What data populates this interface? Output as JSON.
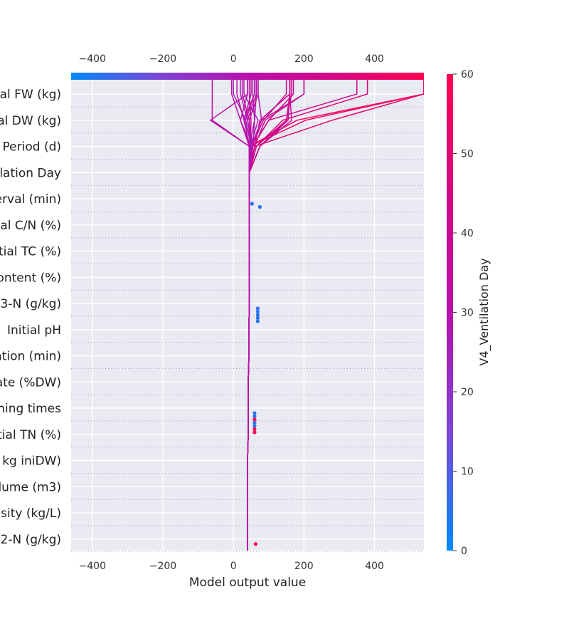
{
  "chart_data": {
    "type": "line",
    "subtype": "shap-decision-plot",
    "xlabel": "Model output value",
    "x_ticks": [
      -400,
      -200,
      0,
      200,
      400
    ],
    "xlim": [
      -460,
      540
    ],
    "base_value": 40,
    "features": [
      "al FW (kg)",
      "al DW (kg)",
      "Period (d)",
      "lation Day",
      "erval (min)",
      "al C/N (%)",
      "tial TC (%)",
      "ontent (%)",
      "3-N (g/kg)",
      "Initial pH",
      "ation (min)",
      "ate (%DW)",
      "ning times",
      "tial TN (%)",
      "kg iniDW)",
      "lume (m3)",
      "nsity (kg/L)",
      "2-N (g/kg)"
    ],
    "colorbar": {
      "title": "V4_Ventilation Day",
      "ticks": [
        0,
        10,
        20,
        30,
        40,
        50,
        60
      ],
      "min": 0,
      "max": 60,
      "colors": [
        "#008afb",
        "#7c45d6",
        "#b811ac",
        "#d40484",
        "#ff0051"
      ]
    },
    "background_color": "#eaeaf2",
    "grid": true,
    "series": [
      {
        "color_value": 58,
        "x": [
          40,
          40,
          40,
          40,
          42,
          42,
          42,
          44,
          44,
          45,
          45,
          45,
          45,
          45,
          45,
          46,
          180,
          540
        ]
      },
      {
        "color_value": 55,
        "x": [
          40,
          40,
          40,
          40,
          42,
          42,
          42,
          44,
          44,
          45,
          45,
          45,
          45,
          45,
          45,
          46,
          205,
          540
        ]
      },
      {
        "color_value": 52,
        "x": [
          40,
          40,
          40,
          40,
          42,
          42,
          42,
          44,
          44,
          45,
          45,
          45,
          45,
          45,
          45,
          60,
          280,
          540
        ]
      },
      {
        "color_value": 48,
        "x": [
          40,
          40,
          40,
          40,
          42,
          42,
          42,
          44,
          44,
          45,
          45,
          45,
          45,
          45,
          45,
          65,
          140,
          380
        ]
      },
      {
        "color_value": 40,
        "x": [
          40,
          40,
          40,
          40,
          42,
          42,
          42,
          44,
          44,
          45,
          45,
          45,
          45,
          45,
          45,
          55,
          100,
          350
        ]
      },
      {
        "color_value": 38,
        "x": [
          40,
          40,
          40,
          40,
          42,
          42,
          42,
          44,
          44,
          45,
          45,
          45,
          45,
          45,
          45,
          50,
          80,
          200
        ]
      },
      {
        "color_value": 40,
        "x": [
          40,
          40,
          40,
          40,
          42,
          42,
          42,
          44,
          44,
          45,
          45,
          45,
          45,
          45,
          45,
          60,
          75,
          160
        ]
      },
      {
        "color_value": 36,
        "x": [
          40,
          40,
          40,
          40,
          42,
          42,
          42,
          44,
          44,
          45,
          45,
          45,
          45,
          45,
          45,
          60,
          90,
          200
        ]
      },
      {
        "color_value": 42,
        "x": [
          40,
          40,
          40,
          40,
          42,
          42,
          42,
          44,
          44,
          45,
          45,
          45,
          45,
          45,
          45,
          55,
          100,
          170
        ]
      },
      {
        "color_value": 40,
        "x": [
          40,
          40,
          40,
          40,
          42,
          42,
          42,
          44,
          44,
          45,
          45,
          45,
          45,
          45,
          45,
          52,
          85,
          150
        ]
      },
      {
        "color_value": 36,
        "x": [
          40,
          40,
          40,
          40,
          42,
          42,
          42,
          44,
          44,
          45,
          45,
          45,
          45,
          45,
          45,
          75,
          165,
          160
        ]
      },
      {
        "color_value": 42,
        "x": [
          40,
          40,
          40,
          40,
          42,
          42,
          42,
          44,
          44,
          45,
          45,
          45,
          45,
          45,
          45,
          75,
          155,
          160
        ]
      },
      {
        "color_value": 40,
        "x": [
          40,
          40,
          40,
          40,
          42,
          42,
          42,
          44,
          44,
          45,
          45,
          45,
          45,
          45,
          45,
          75,
          150,
          165
        ]
      },
      {
        "color_value": 44,
        "x": [
          40,
          40,
          40,
          40,
          42,
          42,
          42,
          44,
          44,
          45,
          45,
          45,
          45,
          45,
          45,
          65,
          150,
          160
        ]
      },
      {
        "color_value": 40,
        "x": [
          40,
          40,
          40,
          40,
          42,
          42,
          42,
          44,
          44,
          45,
          45,
          45,
          45,
          45,
          45,
          60,
          30,
          60
        ]
      },
      {
        "color_value": 38,
        "x": [
          40,
          40,
          40,
          40,
          42,
          42,
          42,
          44,
          44,
          45,
          45,
          45,
          45,
          45,
          45,
          55,
          40,
          65
        ]
      },
      {
        "color_value": 35,
        "x": [
          40,
          40,
          40,
          40,
          42,
          42,
          42,
          44,
          44,
          45,
          45,
          45,
          45,
          45,
          45,
          50,
          45,
          70
        ]
      },
      {
        "color_value": 32,
        "x": [
          40,
          40,
          40,
          40,
          42,
          42,
          42,
          44,
          44,
          45,
          45,
          45,
          45,
          45,
          45,
          55,
          60,
          65
        ]
      },
      {
        "color_value": 28,
        "x": [
          40,
          40,
          40,
          40,
          42,
          42,
          42,
          44,
          44,
          45,
          45,
          45,
          45,
          45,
          45,
          50,
          80,
          70
        ]
      },
      {
        "color_value": 25,
        "x": [
          40,
          40,
          40,
          40,
          42,
          42,
          42,
          44,
          44,
          45,
          45,
          45,
          45,
          45,
          45,
          48,
          70,
          30
        ]
      },
      {
        "color_value": 34,
        "x": [
          40,
          40,
          40,
          40,
          42,
          42,
          42,
          44,
          44,
          45,
          45,
          45,
          45,
          45,
          45,
          45,
          -65,
          40
        ]
      },
      {
        "color_value": 30,
        "x": [
          40,
          40,
          40,
          40,
          42,
          42,
          42,
          44,
          44,
          45,
          45,
          45,
          45,
          45,
          45,
          45,
          -60,
          -60
        ]
      },
      {
        "color_value": 28,
        "x": [
          40,
          40,
          40,
          40,
          42,
          42,
          42,
          44,
          44,
          45,
          45,
          45,
          45,
          45,
          45,
          50,
          20,
          40
        ]
      },
      {
        "color_value": 33,
        "x": [
          40,
          40,
          40,
          40,
          42,
          42,
          42,
          44,
          44,
          45,
          45,
          45,
          45,
          45,
          45,
          55,
          30,
          50
        ]
      },
      {
        "color_value": 26,
        "x": [
          40,
          40,
          40,
          40,
          42,
          42,
          42,
          44,
          44,
          45,
          45,
          45,
          45,
          45,
          45,
          50,
          35,
          60
        ]
      },
      {
        "color_value": 37,
        "x": [
          40,
          40,
          40,
          40,
          42,
          42,
          42,
          44,
          44,
          45,
          45,
          45,
          45,
          45,
          45,
          48,
          50,
          45
        ]
      },
      {
        "color_value": 29,
        "x": [
          40,
          40,
          40,
          40,
          42,
          42,
          42,
          44,
          44,
          45,
          45,
          45,
          45,
          45,
          45,
          45,
          60,
          55
        ]
      },
      {
        "color_value": 31,
        "x": [
          40,
          40,
          40,
          40,
          42,
          42,
          42,
          44,
          44,
          45,
          45,
          45,
          45,
          45,
          45,
          45,
          20,
          -5
        ]
      },
      {
        "color_value": 27,
        "x": [
          40,
          40,
          40,
          40,
          42,
          42,
          42,
          44,
          44,
          45,
          45,
          45,
          45,
          45,
          45,
          52,
          40,
          20
        ]
      },
      {
        "color_value": 35,
        "x": [
          40,
          40,
          40,
          40,
          42,
          42,
          42,
          44,
          44,
          45,
          45,
          45,
          45,
          45,
          45,
          48,
          45,
          25
        ]
      },
      {
        "color_value": 24,
        "x": [
          40,
          40,
          40,
          40,
          42,
          42,
          42,
          44,
          44,
          45,
          45,
          45,
          45,
          45,
          45,
          50,
          35,
          0
        ]
      },
      {
        "color_value": 32,
        "x": [
          40,
          40,
          40,
          40,
          42,
          42,
          42,
          44,
          44,
          45,
          45,
          45,
          45,
          45,
          45,
          46,
          30,
          10
        ]
      }
    ],
    "markers": [
      {
        "feature_index": 4,
        "x": 53,
        "color_value": 5
      },
      {
        "feature_index": 4,
        "x": 75,
        "color_value": 5
      },
      {
        "feature_index": 8,
        "x": 69,
        "color_value": 5
      },
      {
        "feature_index": 8,
        "x": 69,
        "color_value": 5
      },
      {
        "feature_index": 8,
        "x": 69,
        "color_value": 5
      },
      {
        "feature_index": 8,
        "x": 69,
        "color_value": 5
      },
      {
        "feature_index": 8,
        "x": 69,
        "color_value": 5
      },
      {
        "feature_index": 12,
        "x": 60,
        "color_value": 5
      },
      {
        "feature_index": 12,
        "x": 60,
        "color_value": 5
      },
      {
        "feature_index": 12,
        "x": 60,
        "color_value": 60
      },
      {
        "feature_index": 12,
        "x": 60,
        "color_value": 5
      },
      {
        "feature_index": 12,
        "x": 60,
        "color_value": 5
      },
      {
        "feature_index": 12,
        "x": 60,
        "color_value": 60
      },
      {
        "feature_index": 12,
        "x": 60,
        "color_value": 60
      },
      {
        "feature_index": 17,
        "x": 63,
        "color_value": 60
      }
    ]
  }
}
